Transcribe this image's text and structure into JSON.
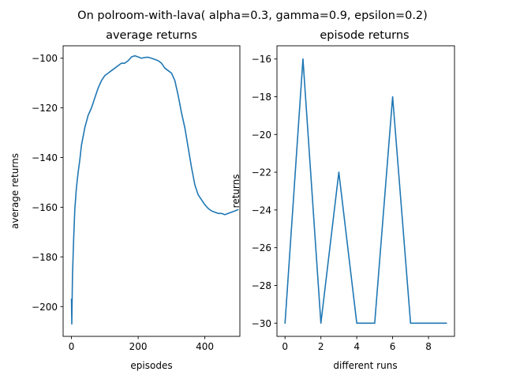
{
  "figure": {
    "suptitle": "On polroom-with-lava( alpha=0.3, gamma=0.9, epsilon=0.2)"
  },
  "chart_data": [
    {
      "type": "line",
      "title": "average returns",
      "xlabel": "episodes",
      "ylabel": "average returns",
      "xlim": [
        -25,
        505
      ],
      "ylim": [
        -212,
        -95
      ],
      "xticks": [
        0,
        200,
        400
      ],
      "xtick_labels": [
        "0",
        "200",
        "400"
      ],
      "yticks": [
        -200,
        -180,
        -160,
        -140,
        -120,
        -100
      ],
      "ytick_labels": [
        "−200",
        "−180",
        "−160",
        "−140",
        "−120",
        "−100"
      ],
      "color": "#1f77b4",
      "grid": false,
      "series": [
        {
          "x": [
            0,
            1,
            3,
            6,
            10,
            15,
            20,
            25,
            30,
            40,
            50,
            60,
            70,
            80,
            90,
            100,
            110,
            120,
            130,
            140,
            150,
            160,
            170,
            180,
            190,
            200,
            210,
            220,
            230,
            240,
            250,
            260,
            270,
            280,
            290,
            300,
            310,
            320,
            330,
            340,
            350,
            360,
            370,
            380,
            390,
            400,
            410,
            420,
            430,
            440,
            450,
            460,
            470,
            480,
            490,
            499
          ],
          "y": [
            -197,
            -207,
            -188,
            -175,
            -161,
            -152,
            -146,
            -141,
            -135,
            -128,
            -123,
            -120,
            -116,
            -112,
            -109,
            -107,
            -106,
            -105,
            -104,
            -103,
            -102,
            -102,
            -101,
            -99.5,
            -99,
            -99.5,
            -100,
            -99.7,
            -99.6,
            -100,
            -100.5,
            -101,
            -102,
            -104,
            -105,
            -106,
            -109,
            -115,
            -122,
            -128,
            -136,
            -144,
            -151,
            -155,
            -157,
            -159,
            -160.5,
            -161.5,
            -162,
            -162.5,
            -162.5,
            -163,
            -162.5,
            -162,
            -161.5,
            -161
          ]
        }
      ]
    },
    {
      "type": "line",
      "title": "episode returns",
      "xlabel": "different runs",
      "ylabel": "returns",
      "xlim": [
        -0.45,
        9.45
      ],
      "ylim": [
        -30.7,
        -15.3
      ],
      "xticks": [
        0,
        2,
        4,
        6,
        8
      ],
      "xtick_labels": [
        "0",
        "2",
        "4",
        "6",
        "8"
      ],
      "yticks": [
        -30,
        -28,
        -26,
        -24,
        -22,
        -20,
        -18,
        -16
      ],
      "ytick_labels": [
        "−30",
        "−28",
        "−26",
        "−24",
        "−22",
        "−20",
        "−18",
        "−16"
      ],
      "color": "#1f77b4",
      "grid": false,
      "series": [
        {
          "x": [
            0,
            1,
            2,
            3,
            4,
            5,
            6,
            7,
            8,
            9
          ],
          "y": [
            -30,
            -16,
            -30,
            -22,
            -30,
            -30,
            -18,
            -30,
            -30,
            -30
          ]
        }
      ]
    }
  ]
}
